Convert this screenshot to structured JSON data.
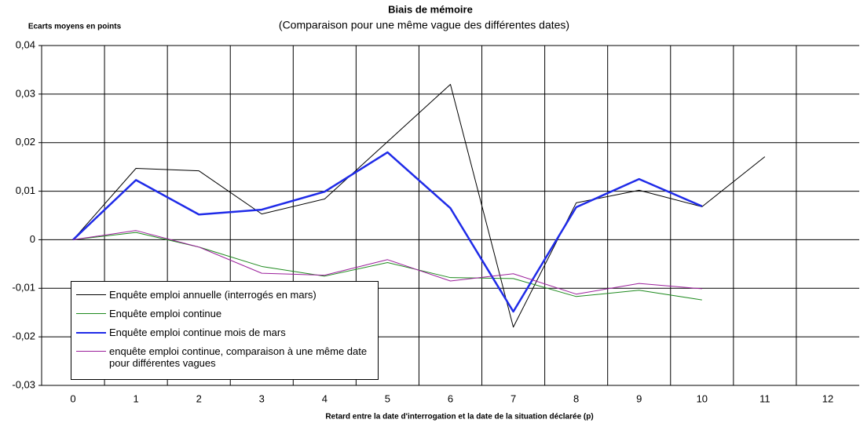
{
  "chart_data": {
    "type": "line",
    "title": "Biais de mémoire",
    "subtitle": "(Comparaison pour une même vague des différentes dates)",
    "y_label": "Ecarts moyens en points",
    "x_label": "Retard entre la date d'interrogation et la date de la situation déclarée (p)",
    "categories": [
      "0",
      "1",
      "2",
      "3",
      "4",
      "5",
      "6",
      "7",
      "8",
      "9",
      "10",
      "11",
      "12"
    ],
    "ylim": [
      -0.03,
      0.04
    ],
    "yticks": [
      {
        "value": -0.03,
        "label": "-0,03"
      },
      {
        "value": -0.02,
        "label": "-0,02"
      },
      {
        "value": -0.01,
        "label": "-0,01"
      },
      0,
      {
        "value": 0.01,
        "label": "0,01"
      },
      {
        "value": 0.02,
        "label": "0,02"
      },
      {
        "value": 0.03,
        "label": "0,03"
      },
      {
        "value": 0.04,
        "label": "0,04"
      }
    ],
    "grid": true,
    "legend": "lower left",
    "series": [
      {
        "name": "Enquête emploi annuelle (interrogés en mars)",
        "color": "#000000",
        "width": 1,
        "values": [
          0,
          0.0147,
          0.0142,
          0.0053,
          0.0084,
          0.0202,
          0.032,
          -0.018,
          0.0076,
          0.0102,
          0.0068,
          0.0171,
          null
        ]
      },
      {
        "name": "Enquête emploi continue",
        "color": "#1e8a1e",
        "width": 1,
        "values": [
          0,
          0.0015,
          -0.0015,
          -0.0055,
          -0.0075,
          -0.0047,
          -0.0078,
          -0.008,
          -0.0117,
          -0.0104,
          -0.0124,
          null,
          null
        ]
      },
      {
        "name": "Enquête emploi continue mois de mars",
        "color": "#1f2be8",
        "width": 2.5,
        "values": [
          0,
          0.0123,
          0.0052,
          0.0062,
          0.0099,
          0.018,
          0.0065,
          -0.0148,
          0.0067,
          0.0125,
          0.0069,
          null,
          null
        ]
      },
      {
        "name": "enquête emploi continue, comparaison à une même date pour différentes vagues",
        "color": "#9b1f9b",
        "width": 1,
        "values": [
          0,
          0.0019,
          -0.0015,
          -0.0069,
          -0.0073,
          -0.0041,
          -0.0085,
          -0.007,
          -0.0112,
          -0.009,
          -0.0101,
          null,
          null
        ]
      }
    ]
  }
}
